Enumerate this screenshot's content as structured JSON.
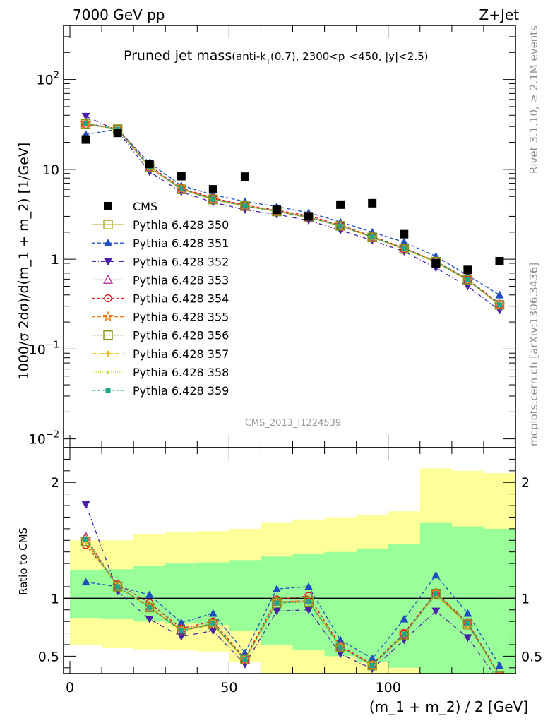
{
  "header": {
    "left": "7000 GeV pp",
    "right": "Z+Jet"
  },
  "side_labels": {
    "top": "Rivet 3.1.10, ≥ 2.1M events",
    "bottom": "mcplots.cern.ch [arXiv:1306.3436]"
  },
  "watermark": "CMS_2013_I1224539",
  "chart_data": [
    {
      "type": "scatter",
      "title": {
        "main": "Pruned jet mass",
        "sub_a": "(anti-k",
        "sub_b": "T",
        "sub_c": "(0.7), 2300<p",
        "sub_d": "T",
        "sub_e": "<450, |y|<2.5)"
      },
      "ylabel": "1000/σ 2dσ)/d(m_1 + m_2) [1/GeV]",
      "yscale": "log",
      "ylim": [
        0.008,
        400
      ],
      "xlim": [
        -2,
        140
      ],
      "ytick_labels": [
        {
          "v": 100,
          "base": "10",
          "exp": "2"
        },
        {
          "v": 10,
          "base": "10",
          "exp": ""
        },
        {
          "v": 1,
          "base": "1",
          "exp": ""
        },
        {
          "v": 0.1,
          "base": "10",
          "exp": "−1"
        },
        {
          "v": 0.01,
          "base": "10",
          "exp": "−2"
        }
      ],
      "x": [
        5,
        15,
        25,
        35,
        45,
        55,
        65,
        75,
        85,
        95,
        105,
        115,
        125,
        135
      ],
      "cms": [
        21.5,
        25.5,
        11.5,
        8.4,
        6.0,
        8.3,
        3.55,
        3.0,
        4.05,
        4.2,
        1.9,
        0.9,
        0.76,
        0.95
      ],
      "legend_cms": "CMS",
      "series": [
        {
          "name": "Pythia 6.428 350",
          "color": "#b5a42a",
          "marker": "square-open",
          "dash": "",
          "values": [
            32,
            28,
            10.5,
            6.0,
            4.6,
            3.9,
            3.4,
            2.9,
            2.35,
            1.75,
            1.3,
            0.93,
            0.58,
            0.31
          ]
        },
        {
          "name": "Pythia 6.428 351",
          "color": "#1f4fbf",
          "marker": "triangle-up",
          "dash": "5,3",
          "values": [
            24.5,
            28,
            11.8,
            6.6,
            5.2,
            4.4,
            3.85,
            3.3,
            2.6,
            2.0,
            1.55,
            1.08,
            0.66,
            0.4
          ]
        },
        {
          "name": "Pythia 6.428 352",
          "color": "#4b1fa8",
          "marker": "triangle-down",
          "dash": "6,3,1,3",
          "values": [
            39,
            27,
            9.4,
            5.6,
            4.3,
            3.55,
            3.15,
            2.7,
            2.1,
            1.62,
            1.22,
            0.8,
            0.5,
            0.27
          ]
        },
        {
          "name": "Pythia 6.428 353",
          "color": "#b02a9a",
          "marker": "triangle-up-open",
          "dash": "1,2",
          "values": [
            33,
            28,
            10.6,
            6.1,
            4.7,
            3.95,
            3.45,
            2.95,
            2.35,
            1.76,
            1.32,
            0.95,
            0.6,
            0.31
          ]
        },
        {
          "name": "Pythia 6.428 354",
          "color": "#e0141e",
          "marker": "circle-open",
          "dash": "4,3",
          "values": [
            31.5,
            28.5,
            11.0,
            6.2,
            4.8,
            4.0,
            3.5,
            3.05,
            2.4,
            1.8,
            1.33,
            0.95,
            0.6,
            0.32
          ]
        },
        {
          "name": "Pythia 6.428 355",
          "color": "#f07a1a",
          "marker": "star-open",
          "dash": "5,3",
          "values": [
            32.5,
            28,
            10.7,
            6.1,
            4.7,
            3.95,
            3.45,
            2.95,
            2.35,
            1.77,
            1.3,
            0.95,
            0.59,
            0.31
          ]
        },
        {
          "name": "Pythia 6.428 356",
          "color": "#7f9a1a",
          "marker": "square-open",
          "dash": "2,2",
          "values": [
            32,
            28,
            10.6,
            6.0,
            4.65,
            3.9,
            3.4,
            2.9,
            2.35,
            1.75,
            1.3,
            0.94,
            0.59,
            0.31
          ]
        },
        {
          "name": "Pythia 6.428 357",
          "color": "#e8c21a",
          "marker": "plus",
          "dash": "6,2,1,2",
          "values": [
            32,
            28,
            10.5,
            6.0,
            4.6,
            3.9,
            3.4,
            2.9,
            2.35,
            1.75,
            1.3,
            0.93,
            0.58,
            0.31
          ]
        },
        {
          "name": "Pythia 6.428 358",
          "color": "#c8d21a",
          "marker": "dot",
          "dash": "1,2",
          "values": [
            32,
            28,
            10.5,
            6.0,
            4.6,
            3.9,
            3.4,
            2.9,
            2.35,
            1.75,
            1.3,
            0.93,
            0.58,
            0.31
          ]
        },
        {
          "name": "Pythia 6.428 359",
          "color": "#1aa889",
          "marker": "square",
          "dash": "4,3",
          "values": [
            32.5,
            28,
            10.6,
            6.05,
            4.65,
            3.9,
            3.42,
            2.92,
            2.35,
            1.76,
            1.31,
            0.94,
            0.59,
            0.31
          ]
        }
      ]
    },
    {
      "type": "scatter",
      "ylabel": "Ratio to CMS",
      "xlabel": "(m_1 + m_2) / 2 [GeV]",
      "ylim": [
        0.35,
        2.3
      ],
      "xlim": [
        -2,
        140
      ],
      "xticks": [
        0,
        50,
        100
      ],
      "ytick_labels": [
        {
          "v": 2,
          "label": "2"
        },
        {
          "v": 1,
          "label": "1"
        },
        {
          "v": 0.5,
          "label": "0.5"
        }
      ],
      "bands": {
        "edges": [
          0,
          10,
          20,
          30,
          40,
          50,
          60,
          70,
          80,
          90,
          100,
          110,
          120,
          130,
          140
        ],
        "yellow_lo": [
          0.6,
          0.57,
          0.56,
          0.55,
          0.54,
          0.45,
          0.3,
          0.3,
          0.3,
          0.3,
          0.3,
          0.3,
          0.3,
          0.3
        ],
        "yellow_hi": [
          1.5,
          1.5,
          1.55,
          1.57,
          1.58,
          1.6,
          1.65,
          1.68,
          1.7,
          1.72,
          1.75,
          2.12,
          2.1,
          2.08
        ],
        "green_lo": [
          0.83,
          0.82,
          0.8,
          0.78,
          0.77,
          0.72,
          0.6,
          0.55,
          0.5,
          0.45,
          0.4,
          0.35,
          0.35,
          0.35
        ],
        "green_hi": [
          1.24,
          1.25,
          1.28,
          1.3,
          1.31,
          1.33,
          1.36,
          1.38,
          1.4,
          1.43,
          1.47,
          1.65,
          1.62,
          1.6
        ]
      },
      "series": [
        {
          "name": "Pythia 6.428 350",
          "values": [
            1.49,
            1.1,
            0.92,
            0.72,
            0.77,
            0.47,
            0.96,
            0.97,
            0.58,
            0.42,
            0.69,
            1.03,
            0.77,
            0.33
          ]
        },
        {
          "name": "Pythia 6.428 351",
          "values": [
            1.14,
            1.1,
            1.03,
            0.79,
            0.87,
            0.53,
            1.08,
            1.1,
            0.64,
            0.48,
            0.82,
            1.2,
            0.87,
            0.42
          ]
        },
        {
          "name": "Pythia 6.428 352",
          "values": [
            1.81,
            1.06,
            0.82,
            0.67,
            0.72,
            0.43,
            0.89,
            0.9,
            0.52,
            0.39,
            0.64,
            0.89,
            0.66,
            0.28
          ]
        },
        {
          "name": "Pythia 6.428 353",
          "values": [
            1.53,
            1.1,
            0.92,
            0.73,
            0.78,
            0.47,
            0.97,
            0.98,
            0.58,
            0.42,
            0.69,
            1.05,
            0.79,
            0.33
          ]
        },
        {
          "name": "Pythia 6.428 354",
          "values": [
            1.46,
            1.12,
            0.96,
            0.74,
            0.8,
            0.48,
            0.99,
            1.02,
            0.59,
            0.43,
            0.7,
            1.05,
            0.79,
            0.34
          ]
        },
        {
          "name": "Pythia 6.428 355",
          "values": [
            1.51,
            1.1,
            0.93,
            0.73,
            0.78,
            0.47,
            0.97,
            0.98,
            0.58,
            0.42,
            0.68,
            1.05,
            0.78,
            0.33
          ]
        },
        {
          "name": "Pythia 6.428 356",
          "values": [
            1.49,
            1.1,
            0.92,
            0.72,
            0.78,
            0.47,
            0.96,
            0.97,
            0.58,
            0.42,
            0.68,
            1.04,
            0.78,
            0.33
          ]
        },
        {
          "name": "Pythia 6.428 357",
          "values": [
            1.49,
            1.1,
            0.92,
            0.72,
            0.77,
            0.47,
            0.96,
            0.97,
            0.58,
            0.42,
            0.69,
            1.03,
            0.77,
            0.33
          ]
        },
        {
          "name": "Pythia 6.428 358",
          "values": [
            1.49,
            1.1,
            0.92,
            0.72,
            0.77,
            0.47,
            0.96,
            0.97,
            0.58,
            0.42,
            0.69,
            1.03,
            0.77,
            0.33
          ]
        },
        {
          "name": "Pythia 6.428 359",
          "values": [
            1.51,
            1.1,
            0.92,
            0.72,
            0.78,
            0.47,
            0.96,
            0.97,
            0.58,
            0.42,
            0.69,
            1.04,
            0.78,
            0.33
          ]
        }
      ]
    }
  ]
}
